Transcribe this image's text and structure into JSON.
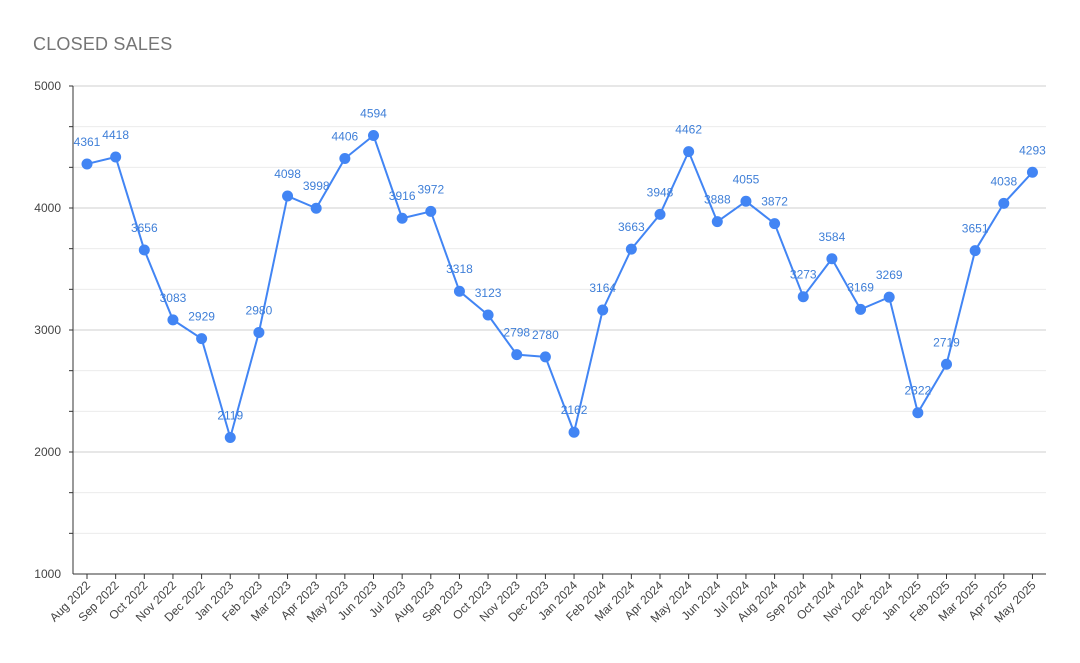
{
  "chart_data": {
    "type": "line",
    "title": "CLOSED SALES",
    "xlabel": "",
    "ylabel": "",
    "ylim": [
      1000,
      5000
    ],
    "yticks": [
      1000,
      2000,
      3000,
      4000,
      5000
    ],
    "grid": true,
    "legend": "none",
    "color": "#4285f4",
    "label_color": "#3f7fd8",
    "categories": [
      "Aug 2022",
      "Sep 2022",
      "Oct 2022",
      "Nov 2022",
      "Dec 2022",
      "Jan 2023",
      "Feb 2023",
      "Mar 2023",
      "Apr 2023",
      "May 2023",
      "Jun 2023",
      "Jul 2023",
      "Aug 2023",
      "Sep 2023",
      "Oct 2023",
      "Nov 2023",
      "Dec 2023",
      "Jan 2024",
      "Feb 2024",
      "Mar 2024",
      "Apr 2024",
      "May 2024",
      "Jun 2024",
      "Jul 2024",
      "Aug 2024",
      "Sep 2024",
      "Oct 2024",
      "Nov 2024",
      "Dec 2024",
      "Jan 2025",
      "Feb 2025",
      "Mar 2025",
      "Apr 2025",
      "May 2025"
    ],
    "values": [
      4361,
      4418,
      3656,
      3083,
      2929,
      2119,
      2980,
      4098,
      3998,
      4406,
      4594,
      3916,
      3972,
      3318,
      3123,
      2798,
      2780,
      2162,
      3164,
      3663,
      3948,
      4462,
      3888,
      4055,
      3872,
      3273,
      3584,
      3169,
      3269,
      2322,
      2719,
      3651,
      4038,
      4293
    ]
  }
}
